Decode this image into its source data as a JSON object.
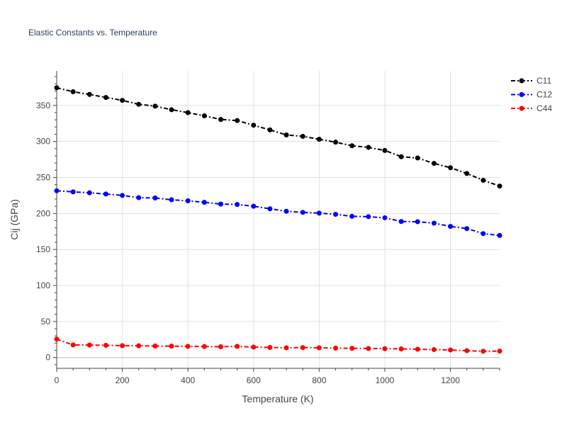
{
  "chart_data": {
    "type": "line",
    "title": "Elastic Constants vs. Temperature",
    "xlabel": "Temperature (K)",
    "ylabel": "Cij (GPa)",
    "xlim": [
      0,
      1350
    ],
    "ylim": [
      -15,
      398
    ],
    "x_ticks": [
      0,
      200,
      400,
      600,
      800,
      1000,
      1200
    ],
    "y_ticks": [
      0,
      50,
      100,
      150,
      200,
      250,
      300,
      350
    ],
    "grid": true,
    "legend_position": "top-right",
    "line_style": "dash-dot with circle markers",
    "x": [
      0,
      50,
      100,
      150,
      200,
      250,
      300,
      350,
      400,
      450,
      500,
      550,
      600,
      650,
      700,
      750,
      800,
      850,
      900,
      950,
      1000,
      1050,
      1100,
      1150,
      1200,
      1250,
      1300,
      1350
    ],
    "series": [
      {
        "name": "C11",
        "color": "#000000",
        "values": [
          374.5,
          369.0,
          365.3,
          361.0,
          357.0,
          351.5,
          349.0,
          344.0,
          340.0,
          335.5,
          330.5,
          329.0,
          322.5,
          316.0,
          309.0,
          307.0,
          303.0,
          299.0,
          294.0,
          291.8,
          287.5,
          278.8,
          277.0,
          269.5,
          263.5,
          255.5,
          246.0,
          238.0
        ]
      },
      {
        "name": "C12",
        "color": "#0000ff",
        "values": [
          231.5,
          230.0,
          228.7,
          227.0,
          225.0,
          222.0,
          221.5,
          219.0,
          217.5,
          215.5,
          213.0,
          212.5,
          210.0,
          206.5,
          203.0,
          201.5,
          200.5,
          198.8,
          196.0,
          195.5,
          194.0,
          188.8,
          188.5,
          186.5,
          182.0,
          179.0,
          172.0,
          169.5
        ]
      },
      {
        "name": "C44",
        "color": "#ff0000",
        "values": [
          25.5,
          17.5,
          17.3,
          17.0,
          16.5,
          16.3,
          16.0,
          15.8,
          15.5,
          15.3,
          15.0,
          15.5,
          14.5,
          14.0,
          13.5,
          13.8,
          13.5,
          13.0,
          12.8,
          12.5,
          12.3,
          12.0,
          11.5,
          11.0,
          10.5,
          9.5,
          8.7,
          8.9
        ]
      }
    ]
  }
}
